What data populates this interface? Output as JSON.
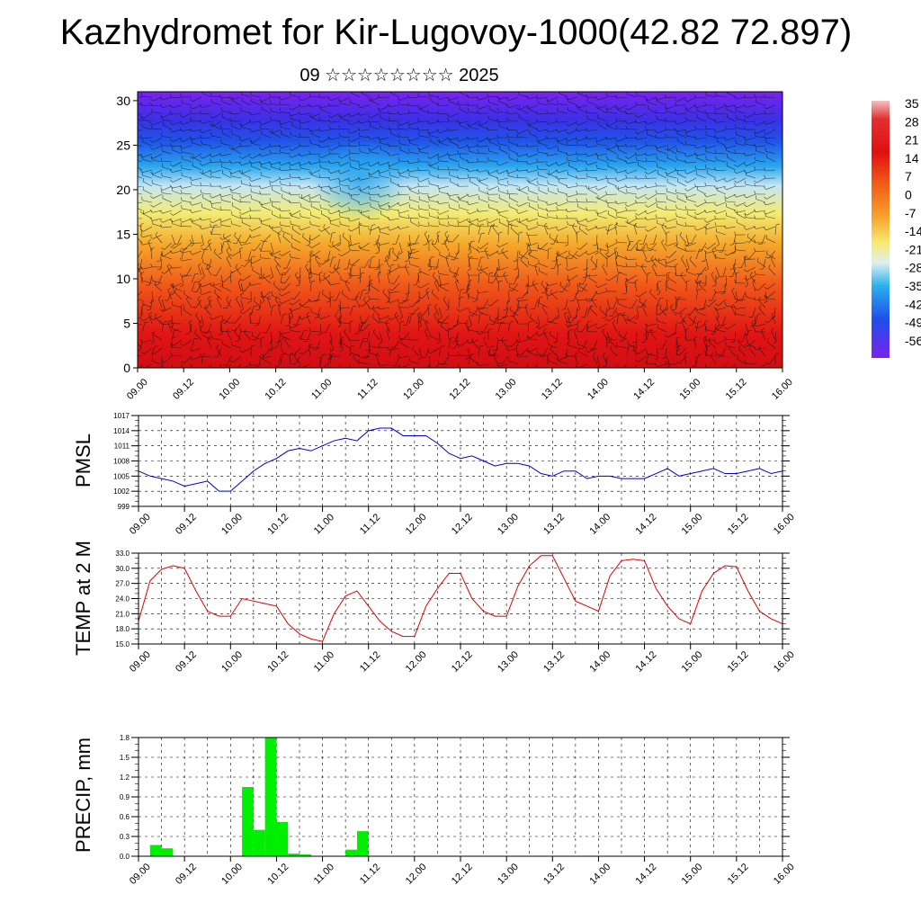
{
  "header": {
    "title": "Kazhydromet for Kir-Lugovoy-1000(42.82 72.897)",
    "subtitle": "09 ☆☆☆☆☆☆☆☆ 2025"
  },
  "chart_data": [
    {
      "type": "heatmap",
      "title": "",
      "xlabel": "",
      "ylabel": "",
      "x_ticks": [
        "09.00",
        "09.12",
        "10.00",
        "10.12",
        "11.00",
        "11.12",
        "12.00",
        "12.12",
        "13.00",
        "13.12",
        "14.00",
        "14.12",
        "15.00",
        "15.12",
        "16.00"
      ],
      "y_ticks": [
        "0",
        "5",
        "10",
        "15",
        "20",
        "25",
        "30"
      ],
      "ylim": [
        0,
        31
      ],
      "colorbar": {
        "labels": [
          "35",
          "28",
          "21",
          "14",
          "7",
          "0",
          "-7",
          "-14",
          "-21",
          "-28",
          "-35",
          "-42",
          "-49",
          "-56"
        ],
        "range": [
          -56,
          35
        ]
      },
      "overlay": "wind barbs"
    },
    {
      "type": "line",
      "ylabel": "PMSL",
      "ylim": [
        999,
        1017
      ],
      "y_ticks": [
        "1017",
        "1014",
        "1011",
        "1008",
        "1005",
        "1002",
        "999"
      ],
      "x_ticks": [
        "09.00",
        "09.12",
        "10.00",
        "10.12",
        "11.00",
        "11.12",
        "12.00",
        "12.12",
        "13.00",
        "13.12",
        "14.00",
        "14.12",
        "15.00",
        "15.12",
        "16.00"
      ],
      "color": "#0000cc",
      "x": [
        0,
        3,
        6,
        9,
        12,
        15,
        18,
        21,
        24,
        27,
        30,
        33,
        36,
        39,
        42,
        45,
        48,
        51,
        54,
        57,
        60,
        63,
        66,
        69,
        72,
        75,
        78,
        81,
        84,
        87,
        90,
        93,
        96,
        99,
        102,
        105,
        108,
        111,
        114,
        117,
        120,
        123,
        126,
        129,
        132,
        135,
        138,
        141,
        144,
        147,
        150,
        153,
        156,
        159,
        162,
        165,
        168
      ],
      "values": [
        1006,
        1005,
        1004.5,
        1004,
        1003,
        1003.5,
        1004,
        1002,
        1002,
        1004,
        1006,
        1007.5,
        1008.5,
        1010,
        1010.5,
        1010,
        1011,
        1012,
        1012.5,
        1012,
        1014,
        1014.5,
        1014.5,
        1013,
        1013,
        1013,
        1011.5,
        1009.5,
        1008.5,
        1009,
        1008,
        1007,
        1007.5,
        1007.5,
        1007,
        1005.5,
        1005,
        1006,
        1006,
        1004.5,
        1005,
        1005,
        1004.5,
        1004.5,
        1004.5,
        1005.5,
        1006.5,
        1005,
        1005.5,
        1006,
        1006.5,
        1005.5,
        1005.5,
        1006,
        1006.5,
        1005.5,
        1006
      ]
    },
    {
      "type": "line",
      "ylabel": "TEMP at 2 M",
      "ylim": [
        15,
        33
      ],
      "y_ticks": [
        "33.0",
        "30.0",
        "27.0",
        "24.0",
        "21.0",
        "18.0",
        "15.0"
      ],
      "x_ticks": [
        "09.00",
        "09.12",
        "10.00",
        "10.12",
        "11.00",
        "11.12",
        "12.00",
        "12.12",
        "13.00",
        "13.12",
        "14.00",
        "14.12",
        "15.00",
        "15.12",
        "16.00"
      ],
      "color": "#dd0000",
      "x": [
        0,
        3,
        6,
        9,
        12,
        15,
        18,
        21,
        24,
        27,
        30,
        33,
        36,
        39,
        42,
        45,
        48,
        51,
        54,
        57,
        60,
        63,
        66,
        69,
        72,
        75,
        78,
        81,
        84,
        87,
        90,
        93,
        96,
        99,
        102,
        105,
        108,
        111,
        114,
        117,
        120,
        123,
        126,
        129,
        132,
        135,
        138,
        141,
        144,
        147,
        150,
        153,
        156,
        159,
        162,
        165,
        168
      ],
      "values": [
        19.5,
        27.5,
        29.8,
        30.5,
        30,
        25.5,
        21.5,
        20.5,
        20.5,
        24,
        23.5,
        23,
        22.5,
        19,
        17,
        16,
        15.5,
        21,
        24.5,
        25.5,
        22.5,
        19.5,
        17.5,
        16.5,
        16.5,
        22.5,
        26,
        29,
        29,
        24,
        21.5,
        20.5,
        20.5,
        26.5,
        30.5,
        32.5,
        32.5,
        28,
        23.5,
        22.5,
        21.5,
        28.5,
        31.5,
        31.8,
        31.5,
        26,
        22.5,
        20,
        19,
        25.5,
        29,
        30.5,
        30.3,
        25.5,
        21.5,
        20,
        19
      ]
    },
    {
      "type": "bar",
      "ylabel": "PRECIP, mm",
      "ylim": [
        0,
        1.8
      ],
      "y_ticks": [
        "1.8",
        "1.5",
        "1.2",
        "0.9",
        "0.6",
        "0.3",
        "0.0"
      ],
      "x_ticks": [
        "09.00",
        "09.12",
        "10.00",
        "10.12",
        "11.00",
        "11.12",
        "12.00",
        "12.12",
        "13.00",
        "13.12",
        "14.00",
        "14.12",
        "15.00",
        "15.12",
        "16.00"
      ],
      "color": "#00ee00",
      "x": [
        6,
        9,
        12,
        15,
        18,
        21,
        24,
        27,
        30,
        33,
        36,
        39,
        42,
        45,
        48,
        51,
        54,
        57,
        60
      ],
      "values": [
        0.17,
        0.12,
        0,
        0,
        0,
        0,
        0,
        0,
        1.05,
        0.4,
        1.8,
        0.52,
        0.04,
        0.03,
        0,
        0,
        0,
        0.1,
        0.38
      ]
    }
  ]
}
